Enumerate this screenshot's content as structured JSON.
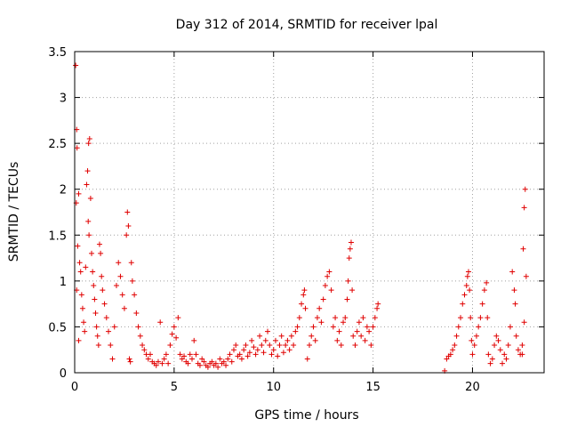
{
  "chart_data": {
    "type": "scatter",
    "title": "Day 312 of 2014, SRMTID for receiver lpal",
    "xlabel": "GPS time / hours",
    "ylabel": "SRMTID / TECUs",
    "xlim": [
      0,
      23.6
    ],
    "ylim": [
      0,
      3.5
    ],
    "xticks": [
      0,
      5,
      10,
      15,
      20
    ],
    "xtick_labels": [
      "0",
      "5",
      "10",
      "15",
      "20"
    ],
    "yticks": [
      0,
      0.5,
      1,
      1.5,
      2,
      2.5,
      3,
      3.5
    ],
    "ytick_labels": [
      "0",
      "0.5",
      "1",
      "1.5",
      "2",
      "2.5",
      "3",
      "3.5"
    ],
    "grid": true,
    "marker": "plus",
    "series_color": "#e00000",
    "series": [
      {
        "name": "SRMTID",
        "points": [
          [
            0.05,
            3.35
          ],
          [
            0.1,
            2.65
          ],
          [
            0.12,
            2.45
          ],
          [
            0.08,
            1.85
          ],
          [
            0.2,
            1.95
          ],
          [
            0.15,
            1.38
          ],
          [
            0.25,
            1.2
          ],
          [
            0.3,
            1.1
          ],
          [
            0.1,
            0.9
          ],
          [
            0.35,
            0.85
          ],
          [
            0.4,
            0.7
          ],
          [
            0.45,
            0.55
          ],
          [
            0.5,
            0.45
          ],
          [
            0.2,
            0.35
          ],
          [
            0.55,
            1.15
          ],
          [
            0.6,
            2.05
          ],
          [
            0.65,
            2.2
          ],
          [
            0.7,
            2.5
          ],
          [
            0.75,
            2.55
          ],
          [
            0.8,
            1.9
          ],
          [
            0.68,
            1.65
          ],
          [
            0.72,
            1.5
          ],
          [
            0.85,
            1.3
          ],
          [
            0.9,
            1.1
          ],
          [
            0.95,
            0.95
          ],
          [
            1.0,
            0.8
          ],
          [
            1.05,
            0.65
          ],
          [
            1.1,
            0.5
          ],
          [
            1.15,
            0.4
          ],
          [
            1.2,
            0.3
          ],
          [
            1.25,
            1.4
          ],
          [
            1.3,
            1.3
          ],
          [
            1.35,
            1.05
          ],
          [
            1.4,
            0.9
          ],
          [
            1.5,
            0.75
          ],
          [
            1.6,
            0.6
          ],
          [
            1.7,
            0.45
          ],
          [
            1.8,
            0.3
          ],
          [
            1.9,
            0.15
          ],
          [
            2.0,
            0.5
          ],
          [
            2.1,
            0.95
          ],
          [
            2.2,
            1.2
          ],
          [
            2.3,
            1.05
          ],
          [
            2.4,
            0.85
          ],
          [
            2.5,
            0.7
          ],
          [
            2.6,
            1.5
          ],
          [
            2.65,
            1.75
          ],
          [
            2.7,
            1.6
          ],
          [
            2.75,
            0.15
          ],
          [
            2.8,
            0.12
          ],
          [
            2.85,
            1.2
          ],
          [
            2.9,
            1.0
          ],
          [
            3.0,
            0.85
          ],
          [
            3.1,
            0.65
          ],
          [
            3.2,
            0.5
          ],
          [
            3.3,
            0.4
          ],
          [
            3.4,
            0.3
          ],
          [
            3.5,
            0.25
          ],
          [
            3.6,
            0.2
          ],
          [
            3.7,
            0.15
          ],
          [
            3.8,
            0.2
          ],
          [
            3.9,
            0.12
          ],
          [
            4.0,
            0.1
          ],
          [
            4.1,
            0.08
          ],
          [
            4.2,
            0.12
          ],
          [
            4.3,
            0.55
          ],
          [
            4.4,
            0.1
          ],
          [
            4.5,
            0.15
          ],
          [
            4.6,
            0.2
          ],
          [
            4.7,
            0.1
          ],
          [
            4.8,
            0.3
          ],
          [
            4.9,
            0.42
          ],
          [
            5.0,
            0.5
          ],
          [
            5.1,
            0.38
          ],
          [
            5.2,
            0.6
          ],
          [
            5.3,
            0.2
          ],
          [
            5.4,
            0.15
          ],
          [
            5.5,
            0.18
          ],
          [
            5.6,
            0.12
          ],
          [
            5.7,
            0.1
          ],
          [
            5.8,
            0.2
          ],
          [
            5.9,
            0.15
          ],
          [
            6.0,
            0.35
          ],
          [
            6.1,
            0.2
          ],
          [
            6.2,
            0.1
          ],
          [
            6.3,
            0.08
          ],
          [
            6.4,
            0.15
          ],
          [
            6.5,
            0.12
          ],
          [
            6.6,
            0.08
          ],
          [
            6.7,
            0.06
          ],
          [
            6.8,
            0.1
          ],
          [
            6.9,
            0.12
          ],
          [
            7.0,
            0.08
          ],
          [
            7.1,
            0.1
          ],
          [
            7.2,
            0.06
          ],
          [
            7.3,
            0.15
          ],
          [
            7.4,
            0.1
          ],
          [
            7.5,
            0.12
          ],
          [
            7.6,
            0.08
          ],
          [
            7.7,
            0.15
          ],
          [
            7.8,
            0.2
          ],
          [
            7.9,
            0.12
          ],
          [
            8.0,
            0.25
          ],
          [
            8.1,
            0.3
          ],
          [
            8.2,
            0.18
          ],
          [
            8.3,
            0.2
          ],
          [
            8.4,
            0.15
          ],
          [
            8.5,
            0.25
          ],
          [
            8.6,
            0.3
          ],
          [
            8.7,
            0.18
          ],
          [
            8.8,
            0.22
          ],
          [
            8.9,
            0.35
          ],
          [
            9.0,
            0.28
          ],
          [
            9.1,
            0.2
          ],
          [
            9.2,
            0.25
          ],
          [
            9.3,
            0.4
          ],
          [
            9.4,
            0.3
          ],
          [
            9.5,
            0.22
          ],
          [
            9.6,
            0.35
          ],
          [
            9.7,
            0.45
          ],
          [
            9.8,
            0.3
          ],
          [
            9.9,
            0.2
          ],
          [
            10.0,
            0.25
          ],
          [
            10.1,
            0.35
          ],
          [
            10.2,
            0.18
          ],
          [
            10.3,
            0.3
          ],
          [
            10.4,
            0.4
          ],
          [
            10.5,
            0.22
          ],
          [
            10.6,
            0.3
          ],
          [
            10.7,
            0.35
          ],
          [
            10.8,
            0.25
          ],
          [
            10.9,
            0.4
          ],
          [
            11.0,
            0.3
          ],
          [
            11.1,
            0.45
          ],
          [
            11.2,
            0.5
          ],
          [
            11.3,
            0.6
          ],
          [
            11.4,
            0.75
          ],
          [
            11.5,
            0.85
          ],
          [
            11.55,
            0.9
          ],
          [
            11.6,
            0.7
          ],
          [
            11.7,
            0.15
          ],
          [
            11.8,
            0.3
          ],
          [
            11.9,
            0.4
          ],
          [
            12.0,
            0.5
          ],
          [
            12.1,
            0.35
          ],
          [
            12.2,
            0.6
          ],
          [
            12.3,
            0.7
          ],
          [
            12.4,
            0.55
          ],
          [
            12.5,
            0.8
          ],
          [
            12.6,
            0.95
          ],
          [
            12.7,
            1.05
          ],
          [
            12.8,
            1.1
          ],
          [
            12.9,
            0.9
          ],
          [
            13.0,
            0.5
          ],
          [
            13.1,
            0.6
          ],
          [
            13.2,
            0.35
          ],
          [
            13.3,
            0.45
          ],
          [
            13.4,
            0.3
          ],
          [
            13.5,
            0.55
          ],
          [
            13.6,
            0.6
          ],
          [
            13.7,
            0.8
          ],
          [
            13.75,
            1.0
          ],
          [
            13.8,
            1.25
          ],
          [
            13.85,
            1.35
          ],
          [
            13.9,
            1.42
          ],
          [
            13.95,
            0.9
          ],
          [
            14.0,
            0.4
          ],
          [
            14.1,
            0.3
          ],
          [
            14.2,
            0.45
          ],
          [
            14.3,
            0.55
          ],
          [
            14.4,
            0.4
          ],
          [
            14.5,
            0.6
          ],
          [
            14.6,
            0.35
          ],
          [
            14.7,
            0.5
          ],
          [
            14.8,
            0.45
          ],
          [
            14.9,
            0.3
          ],
          [
            15.0,
            0.5
          ],
          [
            15.1,
            0.6
          ],
          [
            15.2,
            0.7
          ],
          [
            15.25,
            0.75
          ],
          [
            18.6,
            0.02
          ],
          [
            18.7,
            0.15
          ],
          [
            18.8,
            0.18
          ],
          [
            18.9,
            0.2
          ],
          [
            19.0,
            0.25
          ],
          [
            19.1,
            0.3
          ],
          [
            19.2,
            0.4
          ],
          [
            19.3,
            0.5
          ],
          [
            19.4,
            0.6
          ],
          [
            19.5,
            0.75
          ],
          [
            19.6,
            0.85
          ],
          [
            19.7,
            0.95
          ],
          [
            19.75,
            1.05
          ],
          [
            19.8,
            1.1
          ],
          [
            19.85,
            0.9
          ],
          [
            19.9,
            0.6
          ],
          [
            19.95,
            0.35
          ],
          [
            20.0,
            0.2
          ],
          [
            20.1,
            0.3
          ],
          [
            20.2,
            0.4
          ],
          [
            20.3,
            0.5
          ],
          [
            20.4,
            0.6
          ],
          [
            20.5,
            0.75
          ],
          [
            20.6,
            0.9
          ],
          [
            20.7,
            0.98
          ],
          [
            20.75,
            0.6
          ],
          [
            20.8,
            0.2
          ],
          [
            20.9,
            0.1
          ],
          [
            21.0,
            0.15
          ],
          [
            21.1,
            0.3
          ],
          [
            21.2,
            0.4
          ],
          [
            21.3,
            0.35
          ],
          [
            21.4,
            0.25
          ],
          [
            21.5,
            0.1
          ],
          [
            21.6,
            0.2
          ],
          [
            21.7,
            0.15
          ],
          [
            21.8,
            0.3
          ],
          [
            21.9,
            0.5
          ],
          [
            22.0,
            1.1
          ],
          [
            22.1,
            0.9
          ],
          [
            22.15,
            0.75
          ],
          [
            22.2,
            0.4
          ],
          [
            22.3,
            0.25
          ],
          [
            22.4,
            0.2
          ],
          [
            22.5,
            0.3
          ],
          [
            22.55,
            1.35
          ],
          [
            22.6,
            1.8
          ],
          [
            22.65,
            2.0
          ],
          [
            22.7,
            1.05
          ],
          [
            22.6,
            0.55
          ],
          [
            22.5,
            0.2
          ]
        ]
      }
    ]
  }
}
